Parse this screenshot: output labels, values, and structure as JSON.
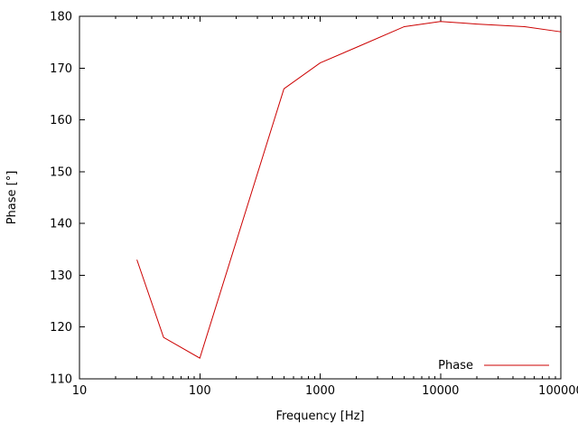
{
  "chart_data": {
    "type": "line",
    "title": "",
    "xlabel": "Frequency [Hz]",
    "ylabel": "Phase [°]",
    "x_scale": "log",
    "y_scale": "linear",
    "xlim": [
      10,
      100000
    ],
    "ylim": [
      110,
      180
    ],
    "x_ticks": [
      10,
      100,
      1000,
      10000,
      100000
    ],
    "x_tick_labels": [
      "10",
      "100",
      "1000",
      "10000",
      "100000"
    ],
    "y_ticks": [
      110,
      120,
      130,
      140,
      150,
      160,
      170,
      180
    ],
    "y_tick_labels": [
      "110",
      "120",
      "130",
      "140",
      "150",
      "160",
      "170",
      "180"
    ],
    "grid": false,
    "legend": {
      "position": "bottom-right",
      "entries": [
        {
          "label": "Phase",
          "color": "#cc0000"
        }
      ]
    },
    "series": [
      {
        "name": "Phase",
        "color": "#cc0000",
        "x": [
          30,
          50,
          100,
          500,
          1000,
          2000,
          5000,
          10000,
          20000,
          50000,
          100000
        ],
        "y": [
          133,
          118,
          114,
          166,
          171,
          174,
          178,
          179,
          178.5,
          178,
          177
        ]
      }
    ],
    "axis_color": "#000000",
    "background_color": "#ffffff"
  }
}
